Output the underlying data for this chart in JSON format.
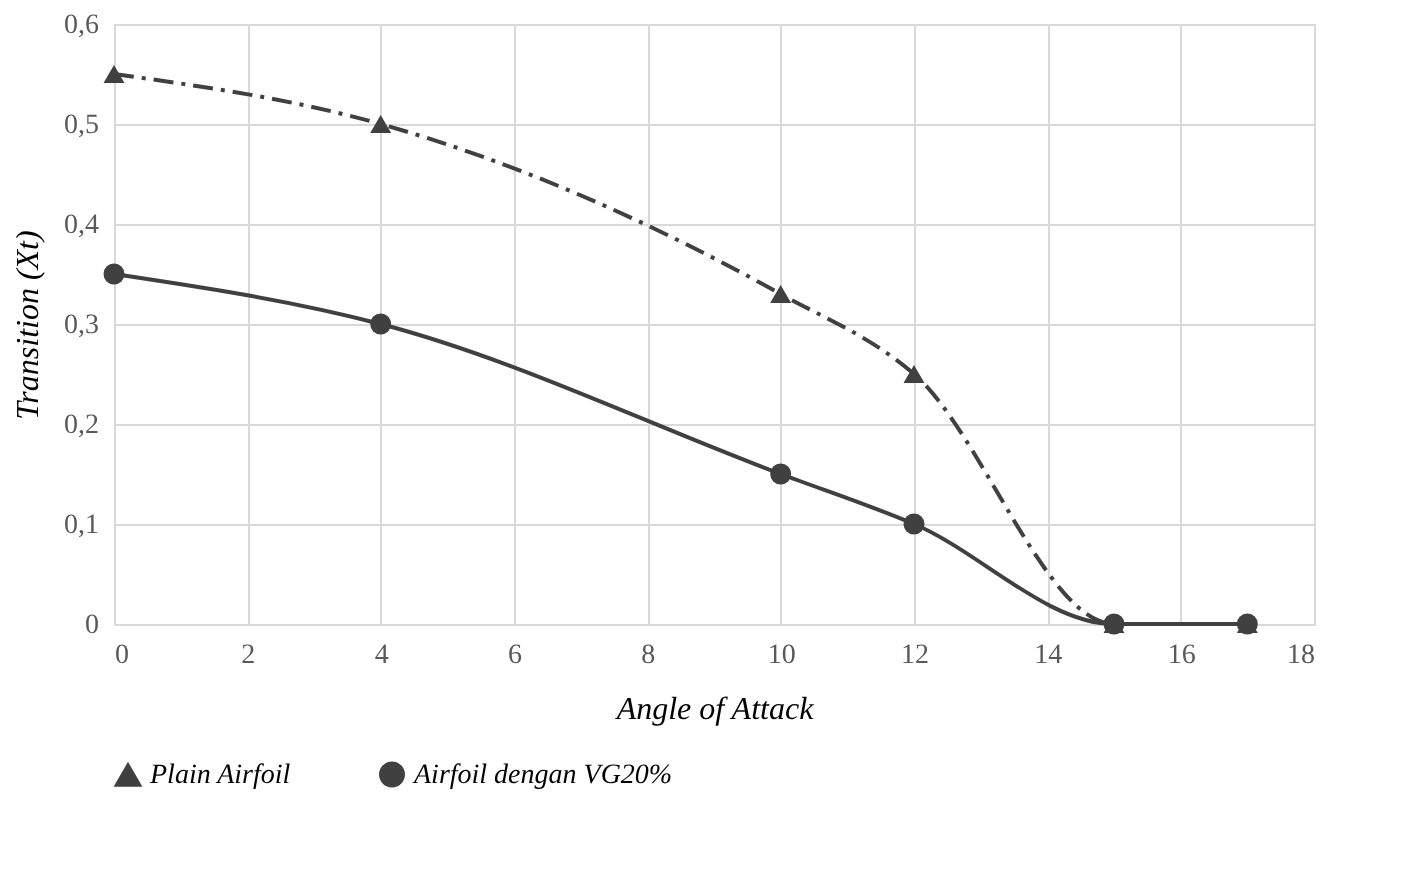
{
  "chart_data": {
    "type": "line",
    "xlabel": "Angle of Attack",
    "ylabel": "Transition (Xt)",
    "x": [
      0,
      4,
      10,
      12,
      15,
      17
    ],
    "series": [
      {
        "name": "Plain Airfoil",
        "color": "#404040",
        "values": [
          0.55,
          0.5,
          0.33,
          0.25,
          0,
          0
        ],
        "marker": "triangle",
        "line_style": "dashed"
      },
      {
        "name": "Airfoil dengan VG20%",
        "color": "#404040",
        "values": [
          0.35,
          0.3,
          0.15,
          0.1,
          0,
          0
        ],
        "marker": "circle",
        "line_style": "solid"
      }
    ],
    "xlim": [
      0,
      18
    ],
    "xticks": [
      0,
      2,
      4,
      6,
      8,
      10,
      12,
      14,
      16,
      18
    ],
    "ylim": [
      0,
      0.6
    ],
    "yticks": [
      {
        "value": 0,
        "label": "0"
      },
      {
        "value": 0.1,
        "label": "0,1"
      },
      {
        "value": 0.2,
        "label": "0,2"
      },
      {
        "value": 0.3,
        "label": "0,3"
      },
      {
        "value": 0.4,
        "label": "0,4"
      },
      {
        "value": 0.5,
        "label": "0,5"
      },
      {
        "value": 0.6,
        "label": "0,6"
      }
    ],
    "grid": true,
    "legend": "bottom"
  }
}
